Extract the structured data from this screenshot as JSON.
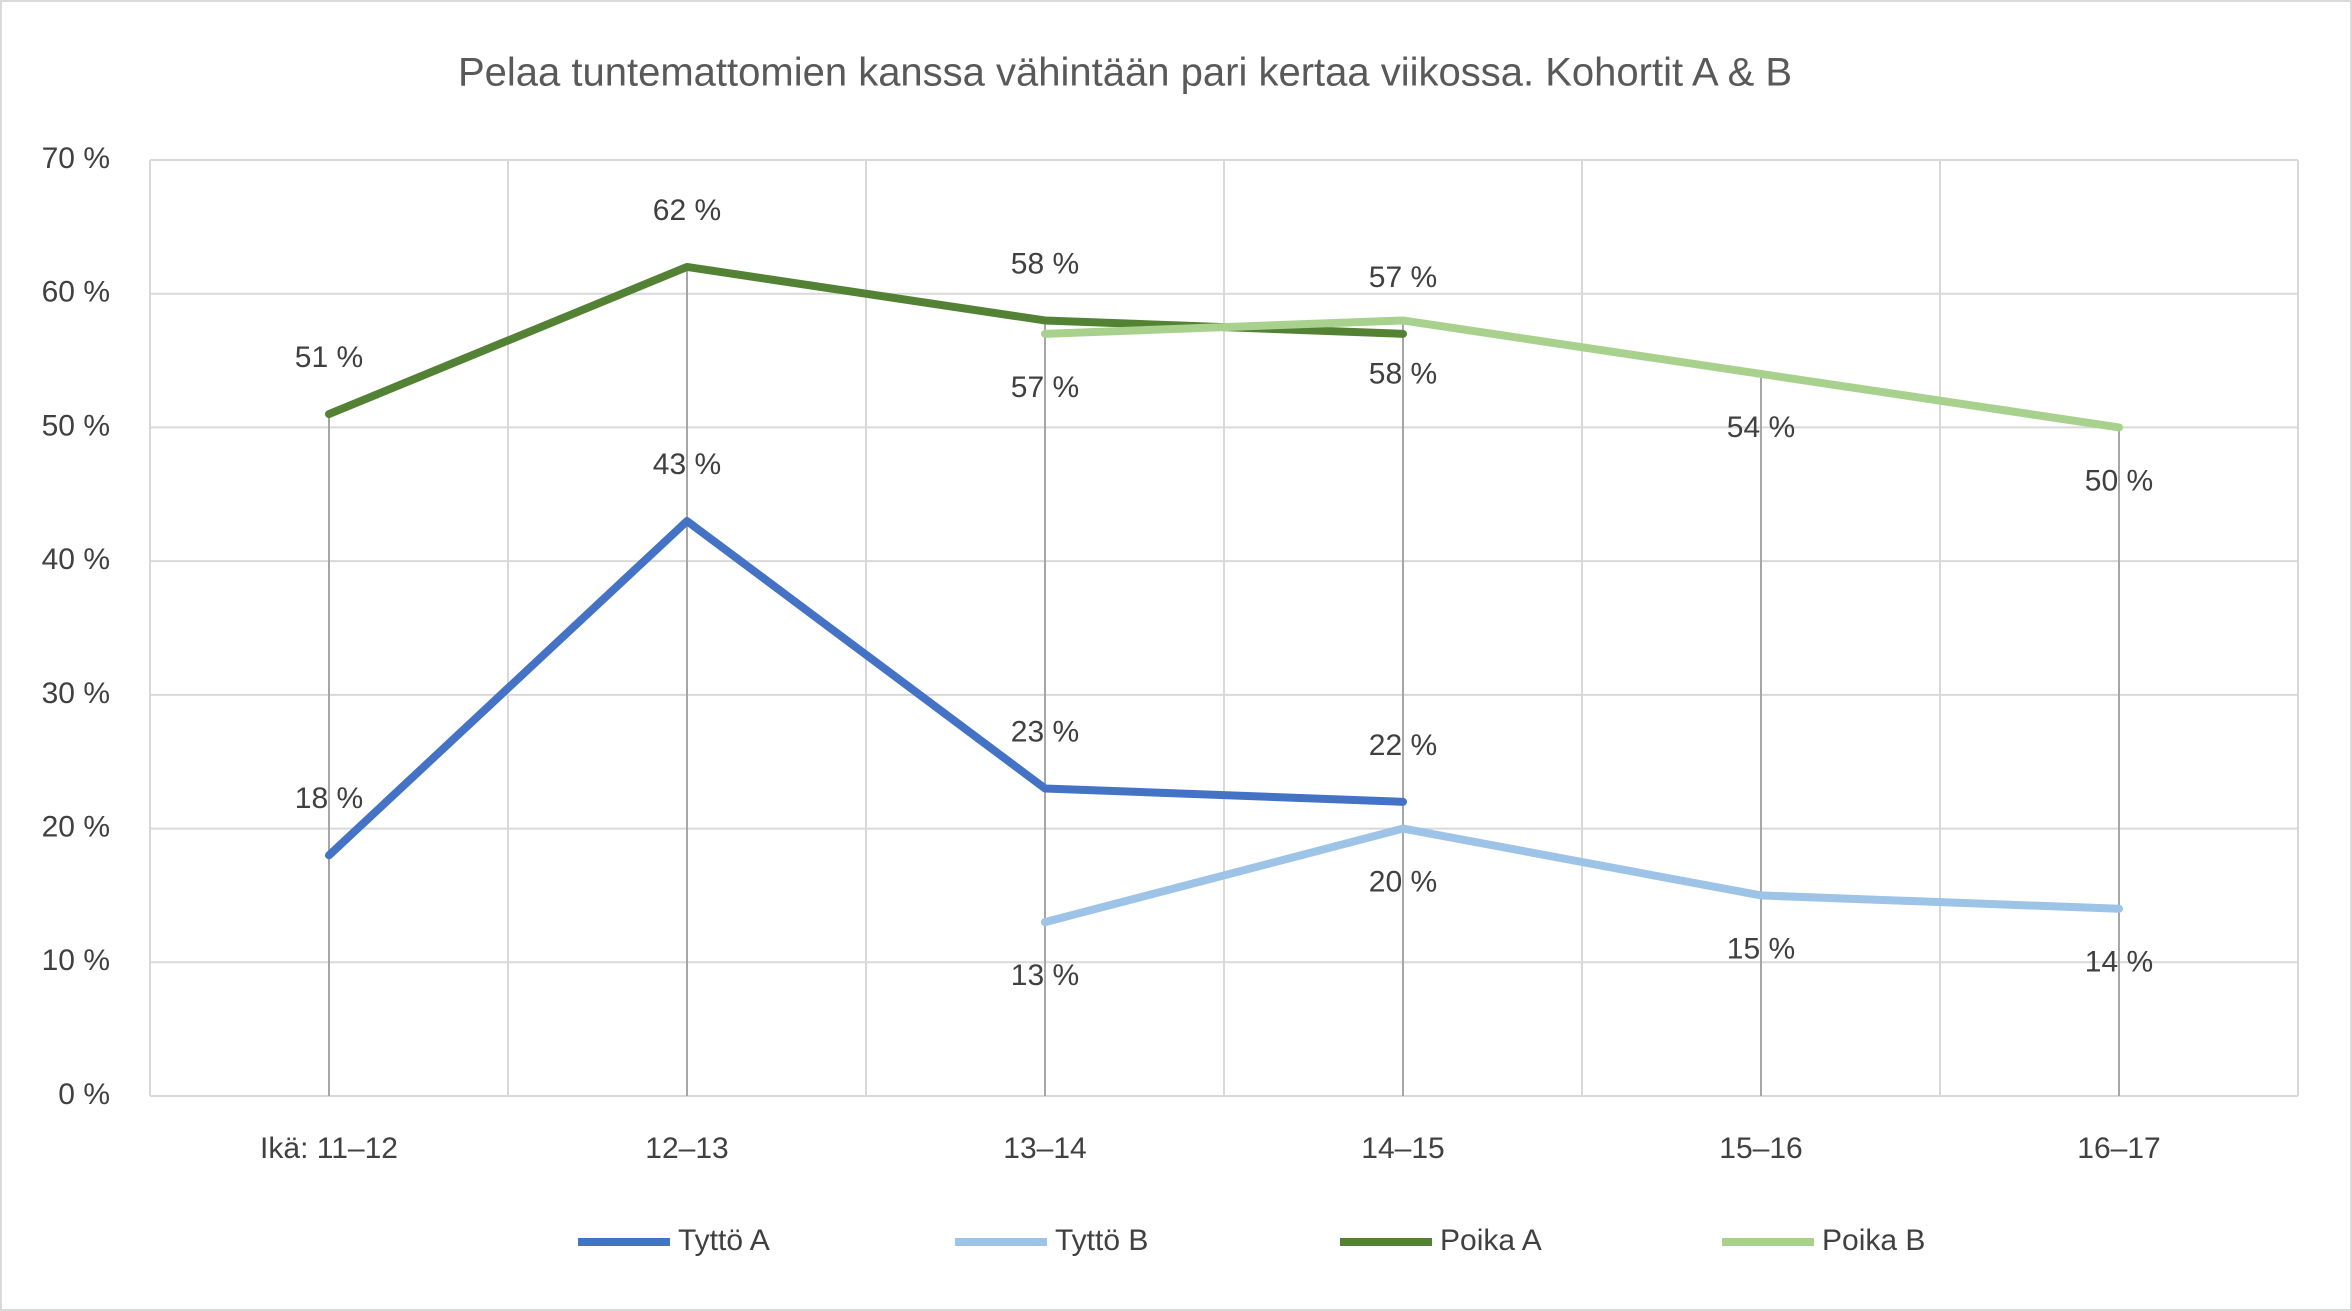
{
  "chart_data": {
    "type": "line",
    "title": "Pelaa tuntemattomien kanssa vähintään pari kertaa viikossa. Kohortit A & B",
    "categories": [
      "Ikä: 11–12",
      "12–13",
      "13–14",
      "14–15",
      "15–16",
      "16–17"
    ],
    "series": [
      {
        "name": "Tyttö A",
        "color": "#4472c4",
        "label_position": "above",
        "values": [
          18,
          43,
          23,
          22,
          null,
          null
        ],
        "value_labels": [
          "18 %",
          "43 %",
          "23 %",
          "22 %",
          null,
          null
        ]
      },
      {
        "name": "Tyttö B",
        "color": "#9dc3e6",
        "label_position": "below",
        "values": [
          null,
          null,
          13,
          20,
          15,
          14
        ],
        "value_labels": [
          null,
          null,
          "13 %",
          "20 %",
          "15 %",
          "14 %"
        ]
      },
      {
        "name": "Poika A",
        "color": "#548235",
        "label_position": "above",
        "values": [
          51,
          62,
          58,
          57,
          null,
          null
        ],
        "value_labels": [
          "51 %",
          "62 %",
          "58 %",
          "57 %",
          null,
          null
        ]
      },
      {
        "name": "Poika B",
        "color": "#a9d18e",
        "label_position": "below",
        "values": [
          null,
          null,
          57,
          58,
          54,
          50
        ],
        "value_labels": [
          null,
          null,
          "57 %",
          "58 %",
          "54 %",
          "50 %"
        ]
      }
    ],
    "ylim": [
      0,
      70
    ],
    "yticks": [
      {
        "value": 0,
        "label": "0 %"
      },
      {
        "value": 10,
        "label": "10 %"
      },
      {
        "value": 20,
        "label": "20 %"
      },
      {
        "value": 30,
        "label": "30 %"
      },
      {
        "value": 40,
        "label": "40 %"
      },
      {
        "value": 50,
        "label": "50 %"
      },
      {
        "value": 60,
        "label": "60 %"
      },
      {
        "value": 70,
        "label": "70 %"
      }
    ],
    "grid": true,
    "legend": "bottom"
  }
}
